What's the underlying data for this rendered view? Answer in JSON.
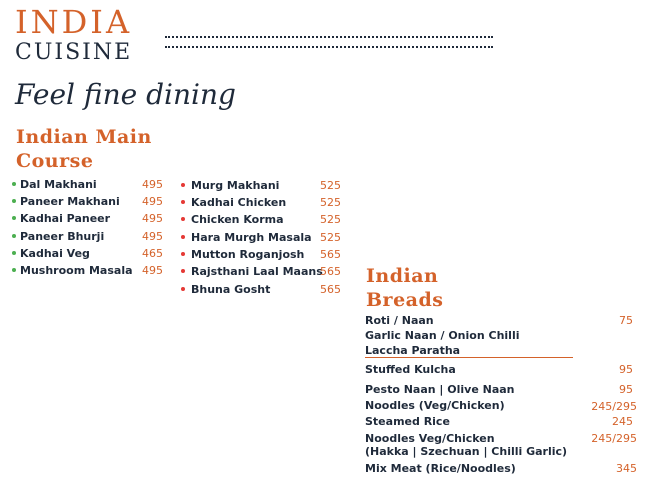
{
  "brand": {
    "line1": "INDIA",
    "line2": "CUISINE",
    "tagline": "Feel fine dining"
  },
  "main_course": {
    "title_line1": "Indian Main",
    "title_line2": "Course",
    "veg": [
      {
        "name": "Dal Makhani",
        "price": "495"
      },
      {
        "name": "Paneer Makhani",
        "price": "495"
      },
      {
        "name": "Kadhai Paneer",
        "price": "495"
      },
      {
        "name": "Paneer Bhurji",
        "price": "495"
      },
      {
        "name": "Kadhai Veg",
        "price": "465"
      },
      {
        "name": "Mushroom Masala",
        "price": "495"
      }
    ],
    "nonveg": [
      {
        "name": "Murg Makhani",
        "price": "525"
      },
      {
        "name": "Kadhai Chicken",
        "price": "525"
      },
      {
        "name": "Chicken Korma",
        "price": "525"
      },
      {
        "name": "Hara Murgh Masala",
        "price": "525"
      },
      {
        "name": "Mutton Roganjosh",
        "price": "565"
      },
      {
        "name": "Rajsthani Laal Maans",
        "price": "565"
      },
      {
        "name": "Bhuna Gosht",
        "price": "565"
      }
    ]
  },
  "breads": {
    "title_line1": "Indian",
    "title_line2": "Breads",
    "items": [
      {
        "name": "Roti / Naan",
        "price": "75"
      },
      {
        "name": "Garlic Naan / Onion Chilli",
        "price": ""
      },
      {
        "name": "Laccha Paratha",
        "price": ""
      },
      {
        "name": "Stuffed Kulcha",
        "price": "95"
      },
      {
        "name": "Pesto Naan | Olive Naan",
        "price": "95"
      },
      {
        "name": "Noodles (Veg/Chicken)",
        "price": "245/295"
      },
      {
        "name": "Steamed Rice",
        "price": "245"
      },
      {
        "name": "Noodles Veg/Chicken",
        "price": "245/295"
      },
      {
        "name": "(Hakka | Szechuan | Chilli Garlic)",
        "price": ""
      },
      {
        "name": "Mix Meat (Rice/Noodles)",
        "price": "345"
      }
    ]
  },
  "colors": {
    "accent": "#d4622a",
    "text": "#1f2a3a",
    "veg_dot": "#4caf50",
    "nonveg_dot": "#e53935"
  }
}
